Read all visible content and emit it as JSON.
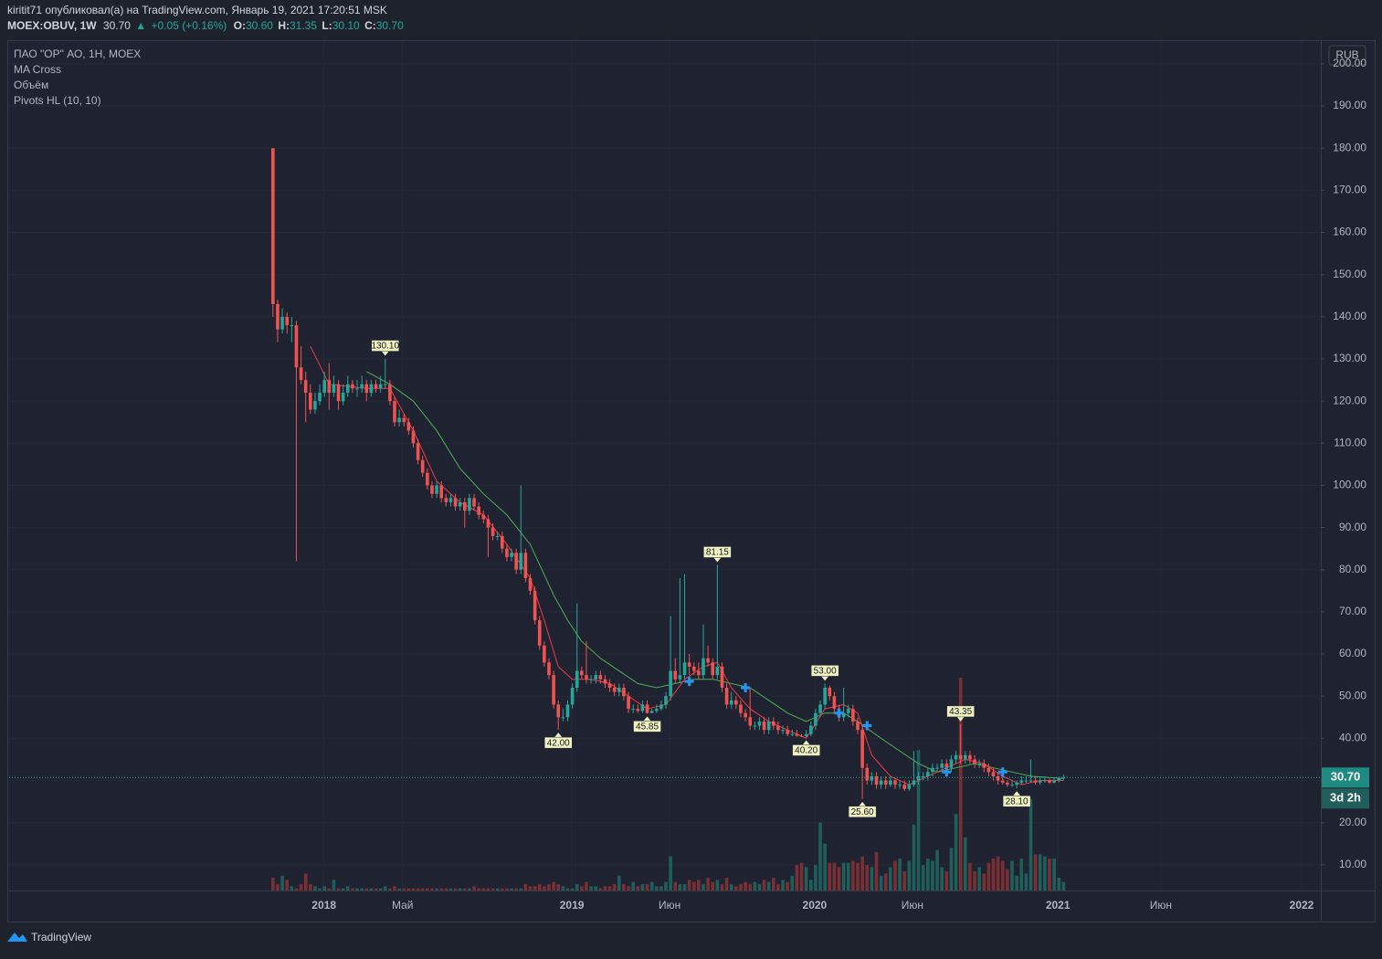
{
  "header": {
    "line1": "kiritit71 опубликовал(а) на TradingView.com, Январь 19, 2021 17:20:51 MSK",
    "symbol": "MOEX:OBUV, 1W",
    "last": "30.70",
    "arrow": "▲",
    "change": "+0.05 (+0.16%)",
    "o_label": "O:",
    "o": "30.60",
    "h_label": "H:",
    "h": "31.35",
    "l_label": "L:",
    "l": "30.10",
    "c_label": "C:",
    "c": "30.70"
  },
  "legend": [
    "ПАО \"ОР\" АО, 1Н, MOEX",
    "MA Cross",
    "Объём",
    "Pivots HL (10, 10)"
  ],
  "currency": "RUB",
  "countdown": "3d 2h",
  "brand": "TradingView",
  "chart_data": {
    "type": "candlestick",
    "up_color": "#26a69a",
    "down_color": "#ef5350",
    "volume_up_color": "#1f5e5a",
    "volume_down_color": "#7a2f33",
    "ohlc": [
      [
        180,
        180,
        140,
        143
      ],
      [
        143,
        144,
        134,
        137
      ],
      [
        137,
        142,
        136,
        140
      ],
      [
        140,
        141,
        136,
        138
      ],
      [
        138,
        140,
        134,
        138
      ],
      [
        138,
        139,
        82,
        128
      ],
      [
        128,
        133,
        124,
        125
      ],
      [
        125,
        127,
        115,
        122
      ],
      [
        122,
        124,
        117,
        118
      ],
      [
        118,
        122,
        117,
        120
      ],
      [
        120,
        124,
        119,
        122
      ],
      [
        122,
        127,
        121,
        125
      ],
      [
        125,
        129,
        118,
        122
      ],
      [
        122,
        126,
        121,
        124
      ],
      [
        124,
        125,
        118,
        120
      ],
      [
        120,
        124,
        119,
        122
      ],
      [
        122,
        126,
        121,
        124
      ],
      [
        124,
        125,
        122,
        123
      ],
      [
        123,
        125,
        121,
        123
      ],
      [
        123,
        126,
        122,
        124
      ],
      [
        124,
        125,
        120,
        122
      ],
      [
        122,
        125,
        121,
        124
      ],
      [
        124,
        125,
        122,
        123
      ],
      [
        123,
        126,
        122,
        124
      ],
      [
        124,
        130.1,
        123,
        124
      ],
      [
        124,
        125,
        119,
        120
      ],
      [
        120,
        121,
        114,
        115
      ],
      [
        115,
        118,
        114,
        116
      ],
      [
        116,
        117,
        114,
        115
      ],
      [
        115,
        116,
        112,
        113
      ],
      [
        113,
        114,
        109,
        110
      ],
      [
        110,
        111,
        105,
        106
      ],
      [
        106,
        107,
        102,
        103
      ],
      [
        103,
        104,
        99,
        100
      ],
      [
        100,
        101,
        97,
        98
      ],
      [
        98,
        101,
        97,
        100
      ],
      [
        100,
        101,
        96,
        97
      ],
      [
        97,
        98,
        95,
        96
      ],
      [
        96,
        98,
        95,
        97
      ],
      [
        97,
        98,
        94,
        95
      ],
      [
        95,
        97,
        94,
        96
      ],
      [
        96,
        97,
        90,
        94
      ],
      [
        94,
        98,
        93,
        97
      ],
      [
        97,
        98,
        94,
        95
      ],
      [
        95,
        96,
        92,
        93
      ],
      [
        93,
        94,
        91,
        92
      ],
      [
        92,
        93,
        83,
        90
      ],
      [
        90,
        91,
        87,
        88
      ],
      [
        88,
        89,
        87,
        88
      ],
      [
        88,
        89,
        84,
        85
      ],
      [
        85,
        86,
        82,
        83
      ],
      [
        83,
        85,
        82,
        84
      ],
      [
        84,
        85,
        79,
        80
      ],
      [
        80,
        100,
        79,
        84
      ],
      [
        84,
        85,
        77,
        78
      ],
      [
        78,
        79,
        74,
        75
      ],
      [
        75,
        76,
        67,
        68
      ],
      [
        68,
        69,
        61,
        62
      ],
      [
        62,
        63,
        57,
        58
      ],
      [
        58,
        59,
        54,
        55
      ],
      [
        55,
        56,
        47,
        48
      ],
      [
        48,
        49,
        42,
        45
      ],
      [
        45,
        47,
        44,
        45
      ],
      [
        45,
        49,
        44,
        48
      ],
      [
        48,
        53,
        47,
        52
      ],
      [
        52,
        72,
        51,
        56
      ],
      [
        56,
        57,
        54,
        55
      ],
      [
        55,
        63,
        53,
        54
      ],
      [
        54,
        55,
        53,
        54
      ],
      [
        54,
        56,
        53,
        55
      ],
      [
        55,
        56,
        53,
        54
      ],
      [
        54,
        55,
        52,
        53
      ],
      [
        53,
        54,
        51,
        52
      ],
      [
        52,
        53,
        50,
        51
      ],
      [
        51,
        53,
        50,
        52
      ],
      [
        52,
        53,
        49,
        50
      ],
      [
        50,
        51,
        46,
        47
      ],
      [
        47,
        48,
        46,
        47
      ],
      [
        47,
        48,
        46,
        46.5
      ],
      [
        46.5,
        49,
        46,
        48
      ],
      [
        48,
        49,
        45.85,
        46
      ],
      [
        46,
        47,
        46,
        46.5
      ],
      [
        46.5,
        48,
        46,
        47
      ],
      [
        47,
        49,
        46.5,
        48
      ],
      [
        48,
        51,
        47,
        50
      ],
      [
        50,
        69,
        49,
        56
      ],
      [
        56,
        59,
        53,
        54
      ],
      [
        54,
        78,
        53,
        55
      ],
      [
        55,
        79,
        54,
        58
      ],
      [
        58,
        60,
        55,
        57
      ],
      [
        57,
        58,
        55,
        56
      ],
      [
        56,
        58,
        54,
        55
      ],
      [
        55,
        67,
        54,
        59
      ],
      [
        59,
        62,
        57,
        58
      ],
      [
        58,
        59,
        54,
        55
      ],
      [
        55,
        81.15,
        54,
        57
      ],
      [
        57,
        58,
        51,
        52
      ],
      [
        52,
        53,
        47,
        48
      ],
      [
        48,
        51,
        47,
        49
      ],
      [
        49,
        50,
        47,
        48
      ],
      [
        48,
        49,
        45,
        46
      ],
      [
        46,
        47,
        44,
        45
      ],
      [
        45,
        52,
        42,
        43
      ],
      [
        43,
        44,
        42,
        43
      ],
      [
        43,
        45,
        42,
        44
      ],
      [
        44,
        45,
        41,
        42
      ],
      [
        42,
        45,
        41,
        44
      ],
      [
        44,
        45,
        42,
        43
      ],
      [
        43,
        44,
        41,
        42
      ],
      [
        42,
        43,
        41,
        42
      ],
      [
        42,
        43,
        40.5,
        41
      ],
      [
        41,
        42,
        40.5,
        41
      ],
      [
        41,
        42,
        40.4,
        40.6
      ],
      [
        40.6,
        41,
        40.3,
        40.5
      ],
      [
        40.5,
        42,
        40.2,
        41
      ],
      [
        41,
        44,
        40.5,
        43
      ],
      [
        43,
        47,
        42,
        46
      ],
      [
        46,
        49,
        45,
        48
      ],
      [
        48,
        53,
        47,
        52
      ],
      [
        52,
        52.5,
        49,
        50
      ],
      [
        50,
        51,
        46,
        47
      ],
      [
        47,
        48,
        44,
        45
      ],
      [
        45,
        52,
        44,
        46
      ],
      [
        46,
        48,
        45,
        47
      ],
      [
        47,
        48,
        43,
        44
      ],
      [
        44,
        45,
        41,
        42
      ],
      [
        42,
        43,
        25.6,
        33
      ],
      [
        33,
        34,
        29,
        30
      ],
      [
        30,
        32,
        29,
        31
      ],
      [
        31,
        32,
        28,
        29
      ],
      [
        29,
        31,
        28,
        30
      ],
      [
        30,
        31,
        28,
        29
      ],
      [
        29,
        31,
        28.5,
        30
      ],
      [
        30,
        30.5,
        28,
        29
      ],
      [
        29,
        30,
        28,
        29
      ],
      [
        29,
        30,
        27.5,
        28
      ],
      [
        28,
        30,
        27.5,
        29
      ],
      [
        29,
        37,
        28.5,
        30
      ],
      [
        30,
        32,
        29,
        31
      ],
      [
        31,
        32,
        30,
        31
      ],
      [
        31,
        33,
        30,
        32
      ],
      [
        32,
        34,
        31,
        33
      ],
      [
        33,
        34,
        32,
        33
      ],
      [
        33,
        35,
        32,
        34
      ],
      [
        34,
        35,
        32,
        33
      ],
      [
        33,
        36,
        32,
        35
      ],
      [
        35,
        37,
        34,
        36
      ],
      [
        36,
        43.35,
        34,
        35
      ],
      [
        35,
        37,
        34,
        36
      ],
      [
        36,
        37,
        34,
        35
      ],
      [
        35,
        36,
        33,
        34
      ],
      [
        34,
        35,
        33,
        34
      ],
      [
        34,
        35,
        32,
        33
      ],
      [
        33,
        34,
        31,
        32
      ],
      [
        32,
        33,
        30,
        31
      ],
      [
        31,
        32,
        29,
        30
      ],
      [
        30,
        31,
        29,
        29.5
      ],
      [
        29.5,
        30,
        28.5,
        29
      ],
      [
        29,
        30,
        28.5,
        29
      ],
      [
        29,
        30,
        28.1,
        29.5
      ],
      [
        29.5,
        31,
        29,
        30
      ],
      [
        30,
        31,
        29.5,
        30
      ],
      [
        30,
        35,
        29.5,
        30
      ],
      [
        30,
        31,
        29,
        29.5
      ],
      [
        29.5,
        31,
        29,
        30
      ],
      [
        30,
        31,
        29.5,
        30
      ],
      [
        30,
        30.5,
        29.2,
        29.5
      ],
      [
        29.5,
        30.5,
        29.3,
        30
      ],
      [
        30,
        30.8,
        29.6,
        30.65
      ],
      [
        30.6,
        31.35,
        30.1,
        30.7
      ]
    ],
    "volume": [
      6,
      3,
      7,
      5,
      2,
      1,
      3,
      8,
      3,
      2,
      1,
      2,
      1,
      5,
      1,
      1,
      2,
      1,
      1,
      1,
      1,
      1,
      1,
      1,
      2,
      1,
      2,
      1,
      1,
      1,
      1,
      1,
      1,
      1,
      1,
      1,
      1,
      1,
      1,
      1,
      1,
      1,
      1,
      2,
      1,
      1,
      1,
      1,
      1,
      1,
      1,
      1,
      1,
      1,
      3,
      2,
      2,
      3,
      2,
      3,
      4,
      3,
      2,
      1,
      1,
      3,
      2,
      4,
      2,
      2,
      1,
      2,
      2,
      3,
      7,
      3,
      2,
      4,
      2,
      3,
      3,
      4,
      2,
      2,
      4,
      16,
      4,
      3,
      3,
      5,
      4,
      5,
      3,
      6,
      4,
      5,
      3,
      6,
      3,
      2,
      3,
      4,
      3,
      4,
      3,
      5,
      4,
      6,
      3,
      5,
      4,
      7,
      12,
      13,
      11,
      5,
      12,
      32,
      22,
      13,
      13,
      11,
      13,
      13,
      14,
      13,
      16,
      12,
      11,
      18,
      7,
      8,
      11,
      14,
      15,
      9,
      14,
      31,
      66,
      12,
      15,
      14,
      19,
      11,
      9,
      20,
      36,
      100,
      25,
      13,
      9,
      11,
      8,
      13,
      15,
      16,
      14,
      10,
      14,
      7,
      15,
      8,
      43,
      17,
      17,
      16,
      15,
      15,
      6,
      4
    ],
    "vlim": [
      0,
      100
    ],
    "ma_fast": {
      "color": "#f23645",
      "x": [
        8,
        12,
        20,
        25,
        30,
        35,
        40,
        45,
        50,
        55,
        58,
        61,
        64,
        68,
        72,
        76,
        80,
        84,
        88,
        92,
        95,
        98,
        102,
        106,
        110,
        114,
        118,
        122,
        125,
        128,
        132,
        136,
        140,
        144,
        148,
        152,
        156,
        160,
        164,
        169
      ],
      "values": [
        133,
        124,
        123,
        123,
        113,
        101,
        96,
        93,
        86,
        78,
        68,
        57,
        54,
        54,
        53,
        50,
        47,
        48,
        54,
        57,
        58,
        52,
        47,
        44,
        42,
        40,
        47,
        48,
        46,
        36,
        31,
        29,
        31,
        33,
        35,
        34,
        31,
        29,
        30,
        30
      ]
    },
    "ma_slow": {
      "color": "#4caf50",
      "x": [
        20,
        25,
        30,
        35,
        40,
        45,
        50,
        55,
        60,
        63,
        66,
        70,
        74,
        78,
        82,
        86,
        90,
        94,
        98,
        102,
        106,
        110,
        114,
        118,
        122,
        125,
        130,
        134,
        138,
        142,
        146,
        150,
        154,
        158,
        162,
        169
      ],
      "values": [
        127,
        124,
        120,
        113,
        104,
        98,
        93,
        86,
        74,
        68,
        63,
        59,
        56,
        53,
        52,
        53,
        54,
        54,
        53,
        52,
        49,
        46,
        44,
        46,
        46,
        44,
        40,
        37,
        34,
        32,
        33,
        34,
        33,
        32,
        31,
        30.5
      ]
    },
    "crosses": {
      "color": "#2196f3",
      "x": [
        89,
        101,
        121,
        127,
        144,
        156
      ],
      "values": [
        53.5,
        52,
        46,
        43,
        32,
        32
      ]
    },
    "pivots": [
      {
        "x": 24,
        "value": 130.1,
        "label": "130.10"
      },
      {
        "x": 61,
        "value": 42,
        "label": "42.00"
      },
      {
        "x": 80,
        "value": 45.85,
        "label": "45.85"
      },
      {
        "x": 95,
        "value": 81.15,
        "label": "81.15"
      },
      {
        "x": 114,
        "value": 40.2,
        "label": "40.20"
      },
      {
        "x": 118,
        "value": 53,
        "label": "53.00"
      },
      {
        "x": 126,
        "value": 25.6,
        "label": "25.60"
      },
      {
        "x": 147,
        "value": 43.35,
        "label": "43.35"
      },
      {
        "x": 159,
        "value": 28.1,
        "label": "28.10"
      }
    ],
    "last_price": {
      "value": 30.7,
      "label": "30.70"
    },
    "xlim": [
      -56.4,
      224
    ],
    "xticks": [
      {
        "value": 10.9,
        "label": "2018"
      },
      {
        "value": 27.7,
        "label": "Май"
      },
      {
        "value": 63.9,
        "label": "2019"
      },
      {
        "value": 84.8,
        "label": "Июн"
      },
      {
        "value": 115.8,
        "label": "2020"
      },
      {
        "value": 136.7,
        "label": "Июн"
      },
      {
        "value": 167.8,
        "label": "2021"
      },
      {
        "value": 189.8,
        "label": "Июн"
      },
      {
        "value": 219.9,
        "label": "2022"
      }
    ],
    "ylim": [
      3.9,
      205.4
    ],
    "yticks": [
      {
        "value": 10,
        "label": "10.00"
      },
      {
        "value": 20,
        "label": "20.00"
      },
      {
        "value": 30,
        "label": "30.00"
      },
      {
        "value": 40,
        "label": "40.00"
      },
      {
        "value": 50,
        "label": "50.00"
      },
      {
        "value": 60,
        "label": "60.00"
      },
      {
        "value": 70,
        "label": "70.00"
      },
      {
        "value": 80,
        "label": "80.00"
      },
      {
        "value": 90,
        "label": "90.00"
      },
      {
        "value": 100,
        "label": "100.00"
      },
      {
        "value": 110,
        "label": "110.00"
      },
      {
        "value": 120,
        "label": "120.00"
      },
      {
        "value": 130,
        "label": "130.00"
      },
      {
        "value": 140,
        "label": "140.00"
      },
      {
        "value": 150,
        "label": "150.00"
      },
      {
        "value": 160,
        "label": "160.00"
      },
      {
        "value": 170,
        "label": "170.00"
      },
      {
        "value": 180,
        "label": "180.00"
      },
      {
        "value": 190,
        "label": "190.00"
      },
      {
        "value": 200,
        "label": "200.00"
      }
    ],
    "grid": true
  }
}
